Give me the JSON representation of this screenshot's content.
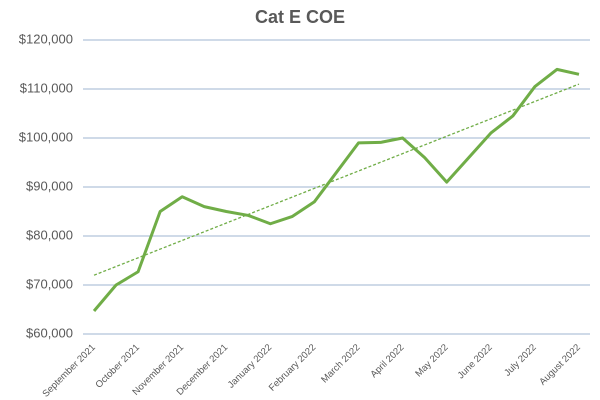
{
  "chart_data": {
    "type": "line",
    "title": "Cat E COE",
    "categories": [
      "September 2021",
      null,
      "October 2021",
      null,
      "November 2021",
      null,
      "December 2021",
      null,
      "January 2022",
      null,
      "February 2022",
      null,
      "March 2022",
      null,
      "April 2022",
      null,
      "May 2022",
      null,
      "June 2022",
      null,
      "July 2022",
      null,
      "August 2022"
    ],
    "series": [
      {
        "name": "Cat E COE",
        "color": "#70ad47",
        "values": [
          64700,
          70000,
          72700,
          85000,
          88000,
          86000,
          85000,
          84200,
          82500,
          84000,
          87000,
          93000,
          99000,
          99100,
          100000,
          96000,
          91000,
          96000,
          101000,
          104500,
          110500,
          114000,
          113000
        ]
      }
    ],
    "trendline": {
      "color": "#70ad47",
      "values": [
        72000,
        111000
      ]
    },
    "ylim": [
      60000,
      120000
    ],
    "yticks": [
      {
        "value": 60000,
        "label": "$60,000"
      },
      {
        "value": 70000,
        "label": "$70,000"
      },
      {
        "value": 80000,
        "label": "$80,000"
      },
      {
        "value": 90000,
        "label": "$90,000"
      },
      {
        "value": 100000,
        "label": "$100,000"
      },
      {
        "value": 110000,
        "label": "$110,000"
      },
      {
        "value": 120000,
        "label": "$120,000"
      }
    ],
    "grid": true
  }
}
